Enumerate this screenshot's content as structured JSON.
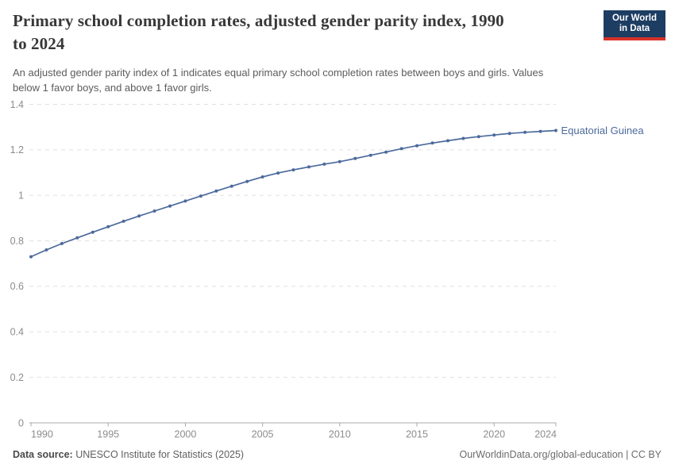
{
  "header": {
    "title_lines": [
      "Primary school completion rates, adjusted gender parity index, 1990",
      "to 2024"
    ],
    "subtitle_lines": [
      "An adjusted gender parity index of 1 indicates equal primary school completion rates between boys and girls. Values",
      "below 1 favor boys, and above 1 favor girls."
    ],
    "logo": {
      "line1": "Our World",
      "line2": "in Data"
    }
  },
  "chart_data": {
    "type": "line",
    "title": "Primary school completion rates, adjusted gender parity index, 1990 to 2024",
    "xlabel": "",
    "ylabel": "",
    "xlim": [
      1990,
      2024
    ],
    "ylim": [
      0,
      1.4
    ],
    "x_ticks": [
      1990,
      1995,
      2000,
      2005,
      2010,
      2015,
      2020,
      2024
    ],
    "y_ticks": [
      0,
      0.2,
      0.4,
      0.6,
      0.8,
      1,
      1.2,
      1.4
    ],
    "grid": "horizontal-dashed",
    "legend_position": "end-of-line-label",
    "x": [
      1990,
      1991,
      1992,
      1993,
      1994,
      1995,
      1996,
      1997,
      1998,
      1999,
      2000,
      2001,
      2002,
      2003,
      2004,
      2005,
      2006,
      2007,
      2008,
      2009,
      2010,
      2011,
      2012,
      2013,
      2014,
      2015,
      2016,
      2017,
      2018,
      2019,
      2020,
      2021,
      2022,
      2023,
      2024
    ],
    "series": [
      {
        "name": "Equatorial Guinea",
        "color": "#4c6a9c",
        "values": [
          0.73,
          0.76,
          0.788,
          0.813,
          0.838,
          0.862,
          0.886,
          0.909,
          0.931,
          0.953,
          0.975,
          0.997,
          1.019,
          1.04,
          1.061,
          1.081,
          1.098,
          1.112,
          1.125,
          1.137,
          1.148,
          1.162,
          1.176,
          1.19,
          1.205,
          1.218,
          1.23,
          1.24,
          1.25,
          1.258,
          1.265,
          1.272,
          1.277,
          1.281,
          1.285
        ]
      }
    ]
  },
  "footer": {
    "source_label": "Data source:",
    "source_text": " UNESCO Institute for Statistics (2025)",
    "credit": "OurWorldinData.org/global-education | CC BY"
  },
  "colors": {
    "series": "#4c6a9c",
    "gridline": "#e0e0e0",
    "axis": "#a8a8a8",
    "tick_label": "#8c8c8c",
    "logo_navy": "#1d3d63",
    "logo_red": "#d7322a"
  }
}
